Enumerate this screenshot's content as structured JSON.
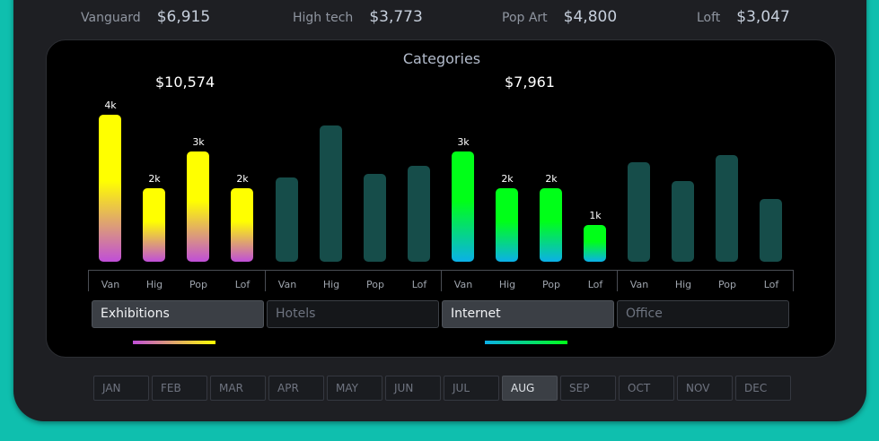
{
  "summary": [
    {
      "label": "Vanguard",
      "value": "$6,915"
    },
    {
      "label": "High tech",
      "value": "$3,773"
    },
    {
      "label": "Pop Art",
      "value": "$4,800"
    },
    {
      "label": "Loft",
      "value": "$3,047"
    }
  ],
  "panel": {
    "title": "Categories",
    "totals": [
      "$10,574",
      "$7,961"
    ]
  },
  "colors": {
    "exhibitions_gradient": [
      "#ffff00",
      "#c04ed8"
    ],
    "internet_gradient": [
      "#00ff18",
      "#0bb0e8"
    ],
    "inactive_bar": "#164d4a"
  },
  "chart_data": {
    "type": "bar",
    "categories": [
      "Van",
      "Hig",
      "Pop",
      "Lof"
    ],
    "groups": [
      {
        "name": "Exhibitions",
        "active": true,
        "values": [
          4,
          2,
          3,
          2
        ],
        "labels": [
          "4k",
          "2k",
          "3k",
          "2k"
        ]
      },
      {
        "name": "Hotels",
        "active": false,
        "values": [
          2.3,
          3.7,
          2.4,
          2.6
        ],
        "labels": []
      },
      {
        "name": "Internet",
        "active": true,
        "values": [
          3,
          2,
          2,
          1
        ],
        "labels": [
          "3k",
          "2k",
          "2k",
          "1k"
        ]
      },
      {
        "name": "Office",
        "active": false,
        "values": [
          2.7,
          2.2,
          2.9,
          1.7
        ],
        "labels": []
      }
    ]
  },
  "categories": [
    {
      "label": "Exhibitions",
      "active": true
    },
    {
      "label": "Hotels",
      "active": false
    },
    {
      "label": "Internet",
      "active": true
    },
    {
      "label": "Office",
      "active": false
    }
  ],
  "months": [
    "JAN",
    "FEB",
    "MAR",
    "APR",
    "MAY",
    "JUN",
    "JUL",
    "AUG",
    "SEP",
    "OCT",
    "NOV",
    "DEC"
  ],
  "selected_month": "AUG"
}
